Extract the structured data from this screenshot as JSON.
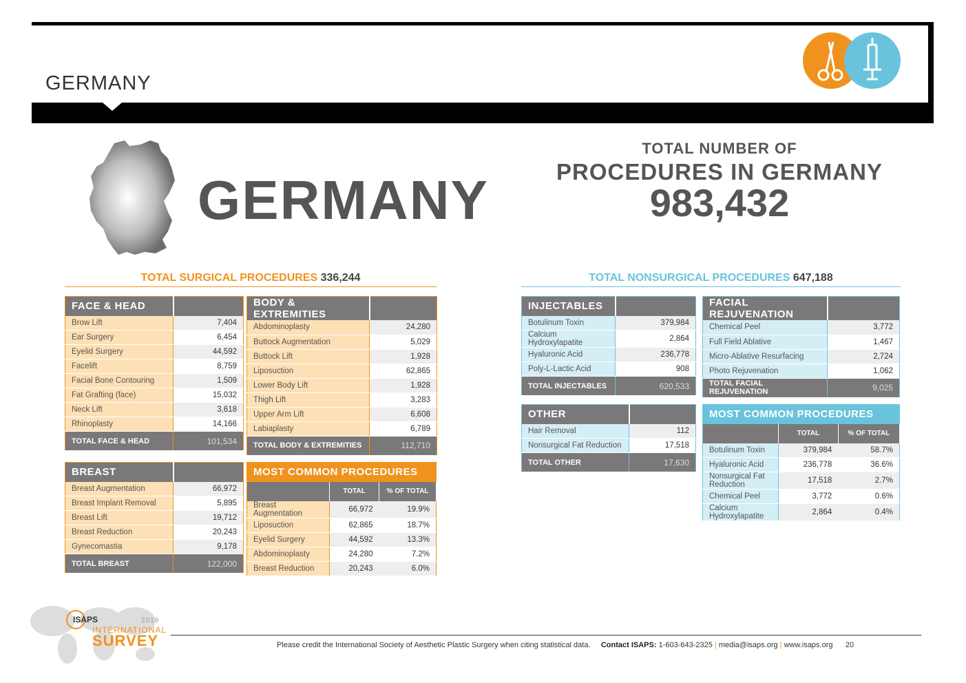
{
  "banner": {
    "title": "GERMANY"
  },
  "hero": {
    "country": "GERMANY",
    "total_line1": "TOTAL NUMBER OF",
    "total_line2": "PROCEDURES IN GERMANY",
    "total_value": "983,432"
  },
  "surgical": {
    "label": "TOTAL SURGICAL PROCEDURES",
    "value": "336,244"
  },
  "nonsurgical": {
    "label": "TOTAL NONSURGICAL  PROCEDURES",
    "value": "647,188"
  },
  "face_head": {
    "title": "FACE & HEAD",
    "rows": [
      {
        "name": "Brow Lift",
        "value": "7,404"
      },
      {
        "name": "Ear Surgery",
        "value": "6,454"
      },
      {
        "name": "Eyelid Surgery",
        "value": "44,592"
      },
      {
        "name": "Facelift",
        "value": "8,759"
      },
      {
        "name": "Facial Bone Contouring",
        "value": "1,509"
      },
      {
        "name": "Fat Grafting (face)",
        "value": "15,032"
      },
      {
        "name": "Neck Lift",
        "value": "3,618"
      },
      {
        "name": "Rhinoplasty",
        "value": "14,166"
      }
    ],
    "total_label": "TOTAL FACE & HEAD",
    "total_value": "101,534"
  },
  "body": {
    "title": "BODY & EXTREMITIES",
    "rows": [
      {
        "name": "Abdominoplasty",
        "value": "24,280"
      },
      {
        "name": "Buttock Augmentation",
        "value": "5,029"
      },
      {
        "name": "Buttock Lift",
        "value": "1,928"
      },
      {
        "name": "Liposuction",
        "value": "62,865"
      },
      {
        "name": "Lower Body Lift",
        "value": "1,928"
      },
      {
        "name": "Thigh Lift",
        "value": "3,283"
      },
      {
        "name": "Upper Arm Lift",
        "value": "6,608"
      },
      {
        "name": "Labiaplasty",
        "value": "6,789"
      }
    ],
    "total_label": "TOTAL BODY & EXTREMITIES",
    "total_value": "112,710"
  },
  "breast": {
    "title": "BREAST",
    "rows": [
      {
        "name": "Breast Augmentation",
        "value": "66,972"
      },
      {
        "name": "Breast Implant Removal",
        "value": "5,895"
      },
      {
        "name": "Breast Lift",
        "value": "19,712"
      },
      {
        "name": "Breast Reduction",
        "value": "20,243"
      },
      {
        "name": "Gynecomastia",
        "value": "9,178"
      }
    ],
    "total_label": "TOTAL BREAST",
    "total_value": "122,000"
  },
  "mc_surgical": {
    "title": "MOST COMMON PROCEDURES",
    "col_total": "TOTAL",
    "col_pct": "% OF TOTAL",
    "rows": [
      {
        "name": "Breast Augmentation",
        "total": "66,972",
        "pct": "19.9%"
      },
      {
        "name": "Liposuction",
        "total": "62,865",
        "pct": "18.7%"
      },
      {
        "name": "Eyelid Surgery",
        "total": "44,592",
        "pct": "13.3%"
      },
      {
        "name": "Abdominoplasty",
        "total": "24,280",
        "pct": "7.2%"
      },
      {
        "name": "Breast Reduction",
        "total": "20,243",
        "pct": "6.0%"
      }
    ]
  },
  "injectables": {
    "title": "INJECTABLES",
    "rows": [
      {
        "name": "Botulinum Toxin",
        "value": "379,984"
      },
      {
        "name": "Calcium Hydroxylapatite",
        "value": "2,864"
      },
      {
        "name": "Hyaluronic Acid",
        "value": "236,778"
      },
      {
        "name": "Poly-L-Lactic Acid",
        "value": "908"
      }
    ],
    "total_label": "TOTAL INJECTABLES",
    "total_value": "620,533"
  },
  "facial_rejuv": {
    "title": "FACIAL REJUVENATION",
    "rows": [
      {
        "name": "Chemical Peel",
        "value": "3,772"
      },
      {
        "name": "Full Field Ablative",
        "value": "1,467"
      },
      {
        "name": "Micro-Ablative Resurfacing",
        "value": "2,724"
      },
      {
        "name": "Photo Rejuvenation",
        "value": "1,062"
      }
    ],
    "total_label": "TOTAL FACIAL REJUVENATION",
    "total_value": "9,025"
  },
  "other": {
    "title": "OTHER",
    "rows": [
      {
        "name": "Hair Removal",
        "value": "112"
      },
      {
        "name": "Nonsurgical Fat Reduction",
        "value": "17,518"
      }
    ],
    "total_label": "TOTAL OTHER",
    "total_value": "17,630"
  },
  "mc_nonsurgical": {
    "title": "MOST COMMON PROCEDURES",
    "col_total": "TOTAL",
    "col_pct": "% OF TOTAL",
    "rows": [
      {
        "name": "Botulinum Toxin",
        "total": "379,984",
        "pct": "58.7%"
      },
      {
        "name": "Hyaluronic Acid",
        "total": "236,778",
        "pct": "36.6%"
      },
      {
        "name": "Nonsurgical Fat Reduction",
        "total": "17,518",
        "pct": "2.7%"
      },
      {
        "name": "Chemical Peel",
        "total": "3,772",
        "pct": "0.6%"
      },
      {
        "name": "Calcium Hydroxylapatite",
        "total": "2,864",
        "pct": "0.4%"
      }
    ]
  },
  "footer": {
    "credit": "Please credit the International Society of Aesthetic Plastic Surgery when citing statistical data.",
    "contact_label": "Contact ISAPS:",
    "phone": "1-603-643-2325",
    "email": "media@isaps.org",
    "web": "www.isaps.org",
    "page": "20",
    "logo_isaps": "ISAPS",
    "logo_year": "2019",
    "logo_intl": "INTERNATIONAL",
    "logo_survey": "SURVEY"
  },
  "colors": {
    "surgical": "#f0921e",
    "nonsurgical": "#6ac3dc",
    "header_gray": "#7a7879"
  }
}
